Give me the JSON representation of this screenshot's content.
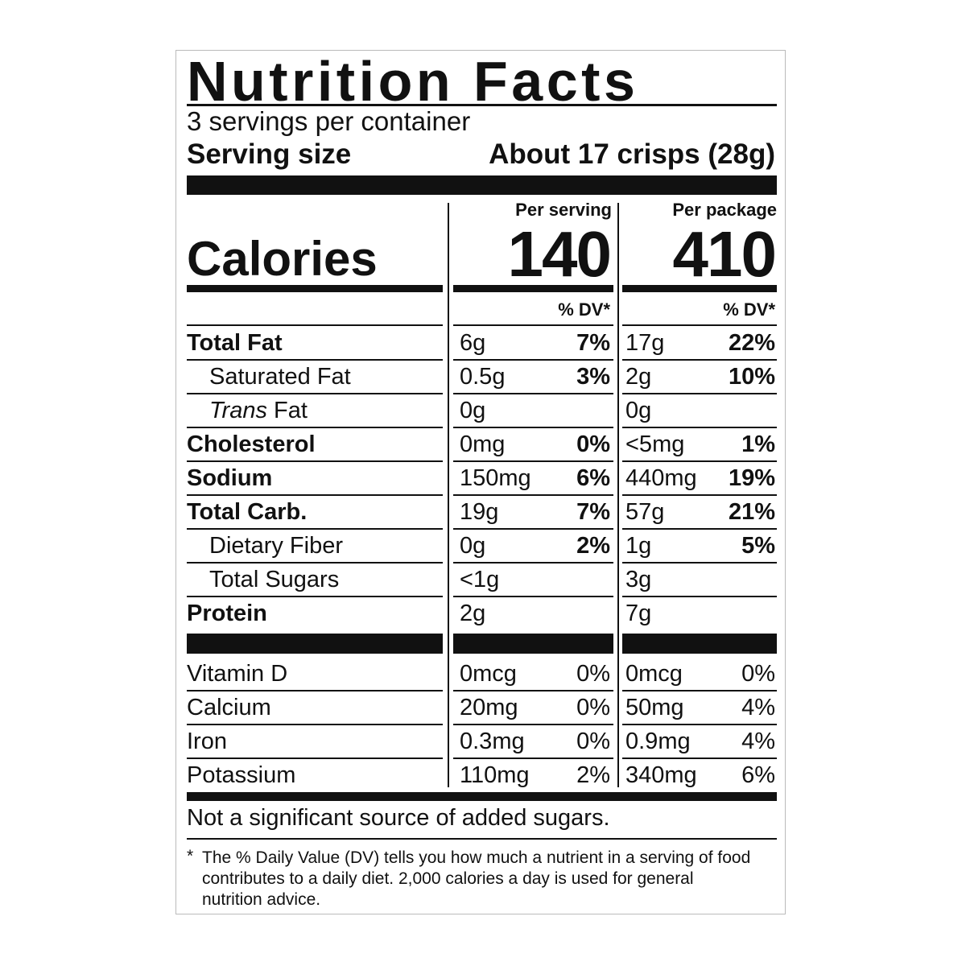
{
  "header": {
    "title": "Nutrition Facts",
    "servings": "3 servings per container",
    "serving_size_label": "Serving size",
    "serving_size": "About 17 crisps (28g)"
  },
  "calories": {
    "label": "Calories",
    "columns": [
      {
        "heading": "Per serving",
        "value": "140",
        "dv_heading": "% DV*"
      },
      {
        "heading": "Per package",
        "value": "410",
        "dv_heading": "% DV*"
      }
    ]
  },
  "nutrients": [
    {
      "name": "Total Fat",
      "amounts": [
        "6g",
        "17g"
      ],
      "dv": [
        "7%",
        "22%"
      ]
    },
    {
      "name": "Saturated Fat",
      "amounts": [
        "0.5g",
        "2g"
      ],
      "dv": [
        "3%",
        "10%"
      ]
    },
    {
      "name_prefix": "Trans",
      "name": "Fat",
      "amounts": [
        "0g",
        "0g"
      ]
    },
    {
      "name": "Cholesterol",
      "amounts": [
        "0mg",
        "<5mg"
      ],
      "dv": [
        "0%",
        "1%"
      ]
    },
    {
      "name": "Sodium",
      "amounts": [
        "150mg",
        "440mg"
      ],
      "dv": [
        "6%",
        "19%"
      ]
    },
    {
      "name": "Total Carb.",
      "amounts": [
        "19g",
        "57g"
      ],
      "dv": [
        "7%",
        "21%"
      ]
    },
    {
      "name": "Dietary Fiber",
      "amounts": [
        "0g",
        "1g"
      ],
      "dv": [
        "2%",
        "5%"
      ]
    },
    {
      "name": "Total Sugars",
      "amounts": [
        "<1g",
        "3g"
      ]
    },
    {
      "name": "Protein",
      "amounts": [
        "2g",
        "7g"
      ]
    }
  ],
  "vitamins": [
    {
      "name": "Vitamin D",
      "amounts": [
        "0mcg",
        "0mcg"
      ],
      "dv": [
        "0%",
        "0%"
      ]
    },
    {
      "name": "Calcium",
      "amounts": [
        "20mg",
        "50mg"
      ],
      "dv": [
        "0%",
        "4%"
      ]
    },
    {
      "name": "Iron",
      "amounts": [
        "0.3mg",
        "0.9mg"
      ],
      "dv": [
        "0%",
        "4%"
      ]
    },
    {
      "name": "Potassium",
      "amounts": [
        "110mg",
        "340mg"
      ],
      "dv": [
        "2%",
        "6%"
      ]
    }
  ],
  "footnotes": {
    "added_sugars": "Not a significant source of added sugars.",
    "asterisk": "*",
    "dv_note": "The % Daily Value (DV) tells you how much a nutrient in a serving of food contributes to a daily diet. 2,000 calories a day is used for general nutrition advice."
  }
}
